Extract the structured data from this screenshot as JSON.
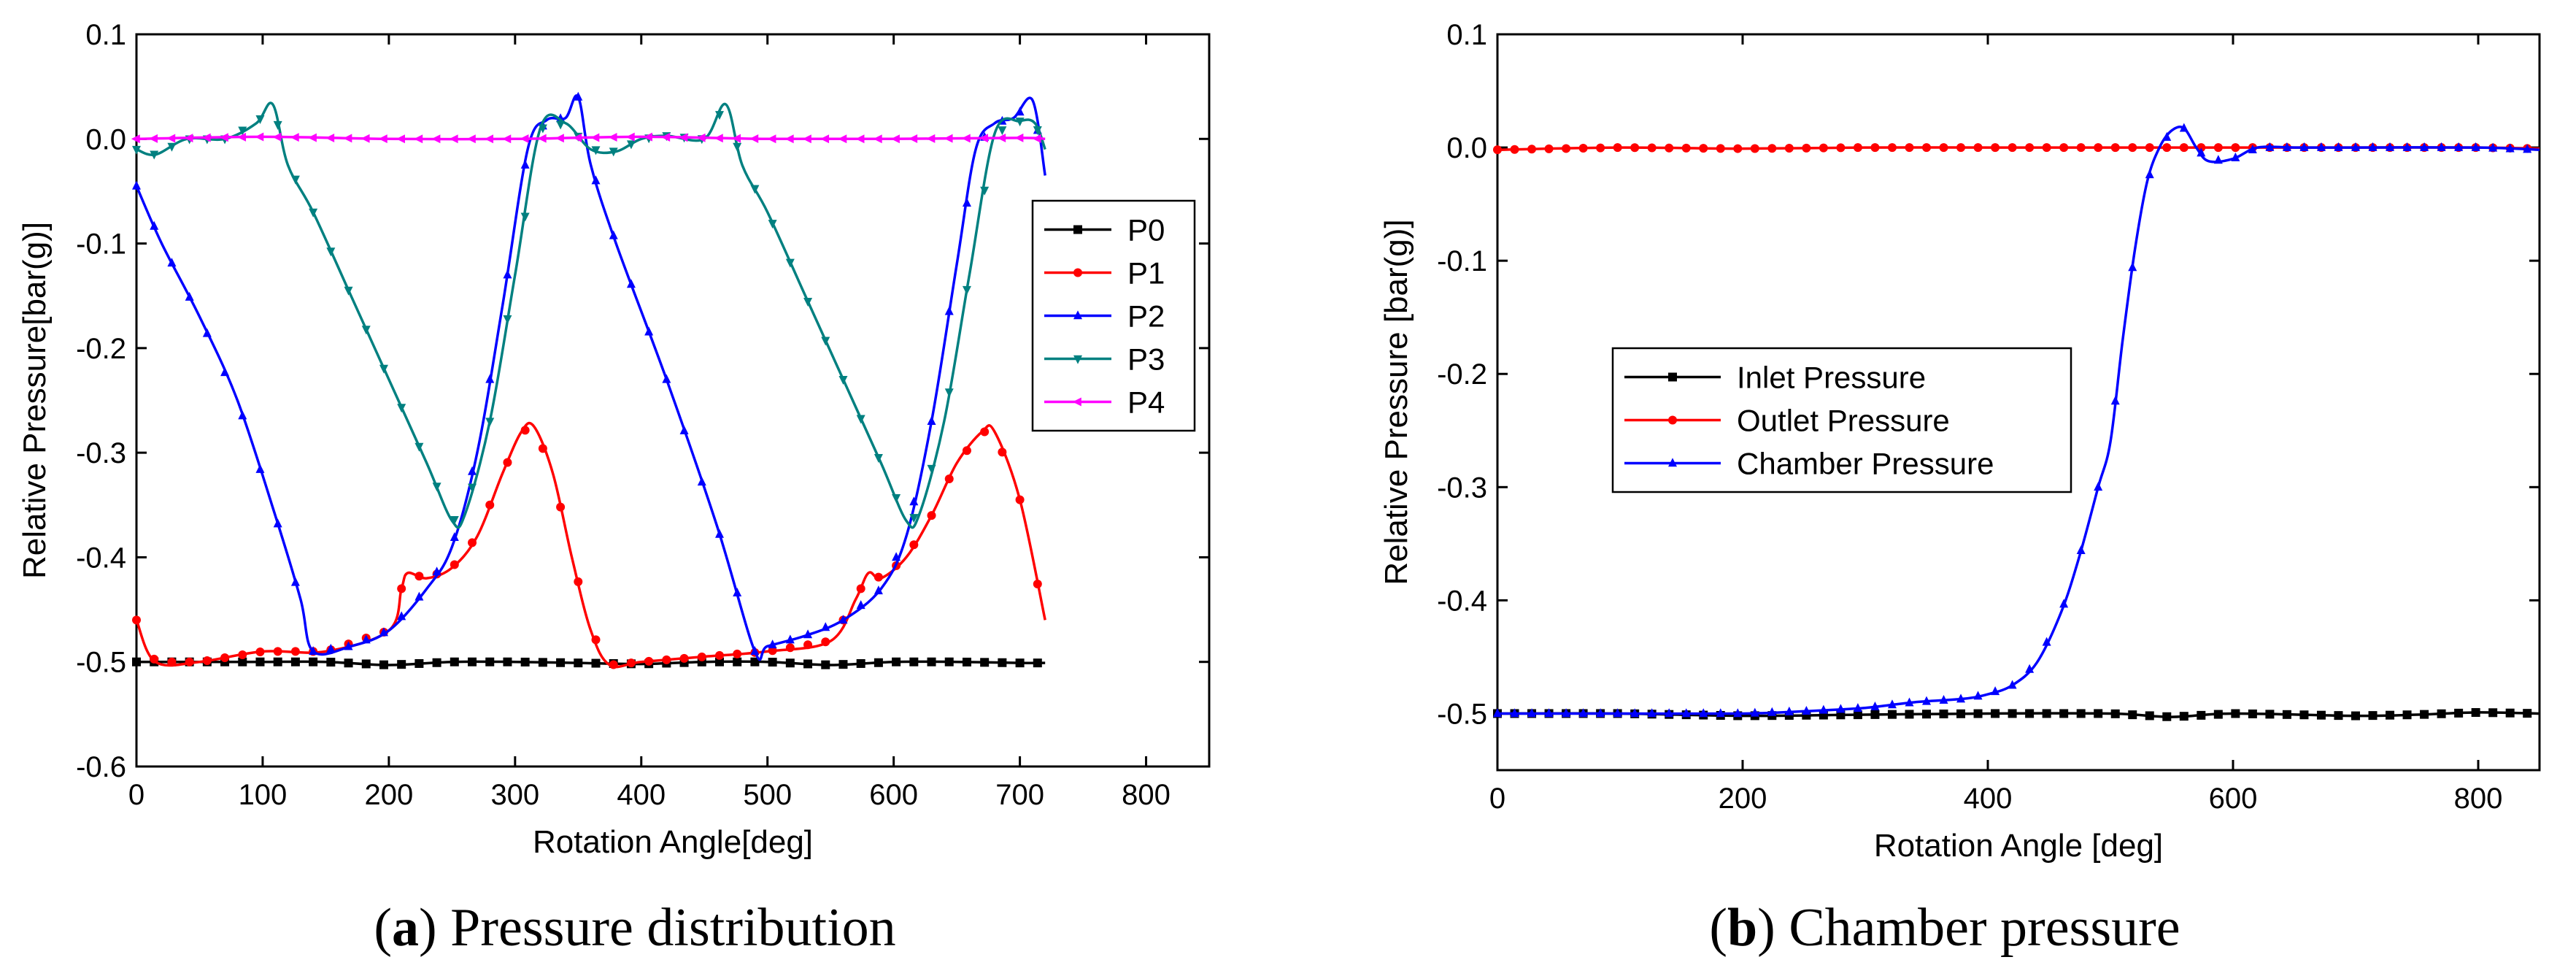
{
  "figure": {
    "caption_a": {
      "open": "(",
      "tag": "a",
      "close": ")",
      "text": "Pressure distribution"
    },
    "caption_b": {
      "open": "(",
      "tag": "b",
      "close": ")",
      "text": "Chamber pressure"
    }
  },
  "chart_data": [
    {
      "type": "line",
      "title": "",
      "xlabel": "Rotation Angle[deg]",
      "ylabel": "Relative Pressure[bar(g)]",
      "xlim": [
        0,
        850
      ],
      "ylim": [
        -0.6,
        0.1
      ],
      "xticks": [
        0,
        100,
        200,
        300,
        400,
        500,
        600,
        700,
        800
      ],
      "xtick_labels": [
        "0",
        "100",
        "200",
        "300",
        "400",
        "500",
        "600",
        "700",
        "800"
      ],
      "yticks": [
        0.1,
        0.0,
        -0.1,
        -0.2,
        -0.3,
        -0.4,
        -0.5,
        -0.6
      ],
      "ytick_labels": [
        "0.1",
        "0.0",
        "-0.1",
        "-0.2",
        "-0.3",
        "-0.4",
        "-0.5",
        "-0.6"
      ],
      "grid": false,
      "legend_position": "right",
      "series": [
        {
          "name": "P0",
          "color": "#000000",
          "marker": "square",
          "x": [
            0,
            50,
            100,
            150,
            200,
            250,
            300,
            350,
            400,
            450,
            500,
            550,
            600,
            650,
            700,
            720
          ],
          "y": [
            -0.5,
            -0.5,
            -0.5,
            -0.5,
            -0.503,
            -0.5,
            -0.5,
            -0.501,
            -0.502,
            -0.5,
            -0.5,
            -0.503,
            -0.5,
            -0.5,
            -0.501,
            -0.501
          ]
        },
        {
          "name": "P1",
          "color": "#ff0000",
          "marker": "circle",
          "x": [
            0,
            15,
            50,
            100,
            150,
            200,
            210,
            215,
            230,
            250,
            270,
            290,
            305,
            315,
            330,
            345,
            360,
            375,
            400,
            450,
            500,
            550,
            570,
            580,
            590,
            610,
            630,
            650,
            670,
            680,
            700,
            720
          ],
          "y": [
            -0.46,
            -0.5,
            -0.5,
            -0.49,
            -0.49,
            -0.47,
            -0.43,
            -0.415,
            -0.42,
            -0.41,
            -0.38,
            -0.32,
            -0.28,
            -0.275,
            -0.32,
            -0.4,
            -0.47,
            -0.503,
            -0.5,
            -0.495,
            -0.49,
            -0.48,
            -0.44,
            -0.415,
            -0.42,
            -0.4,
            -0.36,
            -0.31,
            -0.28,
            -0.28,
            -0.345,
            -0.46
          ]
        },
        {
          "name": "P2",
          "color": "#0000ff",
          "marker": "triangle-up",
          "x": [
            0,
            20,
            50,
            80,
            110,
            130,
            140,
            170,
            200,
            230,
            250,
            270,
            290,
            310,
            325,
            340,
            350,
            360,
            380,
            420,
            460,
            490,
            500,
            530,
            560,
            590,
            610,
            630,
            650,
            665,
            680,
            695,
            710,
            720
          ],
          "y": [
            -0.045,
            -0.1,
            -0.17,
            -0.25,
            -0.36,
            -0.44,
            -0.49,
            -0.485,
            -0.47,
            -0.43,
            -0.39,
            -0.3,
            -0.16,
            -0.01,
            0.018,
            0.02,
            0.04,
            -0.025,
            -0.1,
            -0.23,
            -0.37,
            -0.49,
            -0.485,
            -0.475,
            -0.46,
            -0.43,
            -0.38,
            -0.27,
            -0.12,
            -0.01,
            0.015,
            0.02,
            0.037,
            -0.035
          ]
        },
        {
          "name": "P3",
          "color": "#008080",
          "marker": "triangle-down",
          "x": [
            0,
            15,
            40,
            70,
            95,
            108,
            120,
            140,
            170,
            200,
            230,
            250,
            260,
            280,
            300,
            320,
            340,
            360,
            380,
            400,
            420,
            450,
            467,
            480,
            500,
            530,
            560,
            590,
            610,
            620,
            640,
            660,
            680,
            700,
            712,
            720
          ],
          "y": [
            -0.01,
            -0.015,
            0.0,
            0.0,
            0.015,
            0.033,
            -0.025,
            -0.07,
            -0.15,
            -0.23,
            -0.31,
            -0.365,
            -0.36,
            -0.27,
            -0.13,
            0.01,
            0.015,
            -0.01,
            -0.012,
            0.0,
            0.003,
            0.0,
            0.033,
            -0.025,
            -0.07,
            -0.15,
            -0.23,
            -0.31,
            -0.365,
            -0.36,
            -0.27,
            -0.13,
            0.005,
            0.017,
            0.015,
            -0.01
          ]
        },
        {
          "name": "P4",
          "color": "#ff00ff",
          "marker": "triangle-left",
          "x": [
            0,
            100,
            200,
            300,
            400,
            500,
            600,
            700,
            720
          ],
          "y": [
            0.0,
            0.002,
            0.0,
            0.0,
            0.002,
            0.0,
            0.0,
            0.001,
            0.0
          ]
        }
      ]
    },
    {
      "type": "line",
      "title": "",
      "xlabel": "Rotation Angle [deg]",
      "ylabel": "Relative Pressure [bar(g)]",
      "xlim": [
        0,
        850
      ],
      "ylim": [
        -0.55,
        0.1
      ],
      "xticks": [
        0,
        200,
        400,
        600,
        800
      ],
      "xtick_labels": [
        "0",
        "200",
        "400",
        "600",
        "800"
      ],
      "yticks": [
        0.1,
        0.0,
        -0.1,
        -0.2,
        -0.3,
        -0.4,
        -0.5
      ],
      "ytick_labels": [
        "0.1",
        "0.0",
        "-0.1",
        "-0.2",
        "-0.3",
        "-0.4",
        "-0.5"
      ],
      "grid": false,
      "legend_position": "center-left",
      "series": [
        {
          "name": "Inlet Pressure",
          "color": "#000000",
          "marker": "square",
          "x": [
            0,
            100,
            200,
            300,
            400,
            500,
            550,
            600,
            700,
            750,
            800,
            850
          ],
          "y": [
            -0.5,
            -0.5,
            -0.502,
            -0.501,
            -0.5,
            -0.5,
            -0.503,
            -0.5,
            -0.502,
            -0.501,
            -0.499,
            -0.5
          ]
        },
        {
          "name": "Outlet Pressure",
          "color": "#ff0000",
          "marker": "circle",
          "x": [
            0,
            100,
            200,
            300,
            400,
            500,
            600,
            700,
            800,
            850
          ],
          "y": [
            -0.002,
            0.0,
            -0.001,
            0.0,
            0.0,
            0.0,
            0.0,
            0.0,
            0.0,
            -0.001
          ]
        },
        {
          "name": "Chamber Pressure",
          "color": "#0000ff",
          "marker": "triangle-up",
          "x": [
            0,
            100,
            200,
            250,
            300,
            340,
            380,
            400,
            420,
            440,
            460,
            475,
            490,
            500,
            510,
            520,
            530,
            540,
            550,
            560,
            570,
            580,
            600,
            620,
            650,
            700,
            800,
            850
          ],
          "y": [
            -0.5,
            -0.5,
            -0.5,
            -0.498,
            -0.495,
            -0.49,
            -0.487,
            -0.483,
            -0.475,
            -0.455,
            -0.41,
            -0.36,
            -0.3,
            -0.26,
            -0.17,
            -0.09,
            -0.03,
            0.0,
            0.015,
            0.017,
            0.0,
            -0.012,
            -0.01,
            0.0,
            0.0,
            0.0,
            0.0,
            -0.002
          ]
        }
      ]
    }
  ]
}
